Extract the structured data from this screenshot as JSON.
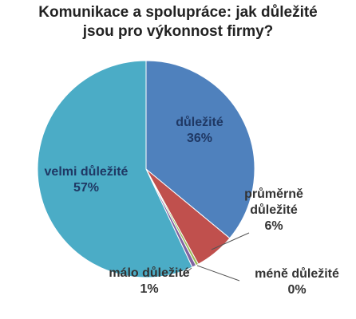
{
  "chart_data": {
    "type": "pie",
    "title": [
      "Komunikace a spolupráce: jak důležité",
      "jsou pro výkonnost firmy?"
    ],
    "slices": [
      {
        "label": [
          "důležité"
        ],
        "percent_label": "36%",
        "value": 36,
        "color": "#4f81bd",
        "label_color": "#1f3864"
      },
      {
        "label": [
          "průměrně",
          "důležité"
        ],
        "percent_label": "6%",
        "value": 6,
        "color": "#c0504d",
        "label_color": "#333333"
      },
      {
        "label": [
          "méně důležité"
        ],
        "percent_label": "0%",
        "value": 0.4,
        "color": "#9bbb59",
        "label_color": "#333333"
      },
      {
        "label": [
          "málo důležité"
        ],
        "percent_label": "1%",
        "value": 0.6,
        "color": "#8064a2",
        "label_color": "#333333"
      },
      {
        "label": [
          "velmi důležité"
        ],
        "percent_label": "57%",
        "value": 57,
        "color": "#4bacc6",
        "label_color": "#1f3864"
      }
    ],
    "start_angle": "12 o'clock",
    "direction": "clockwise",
    "legend": "none"
  }
}
